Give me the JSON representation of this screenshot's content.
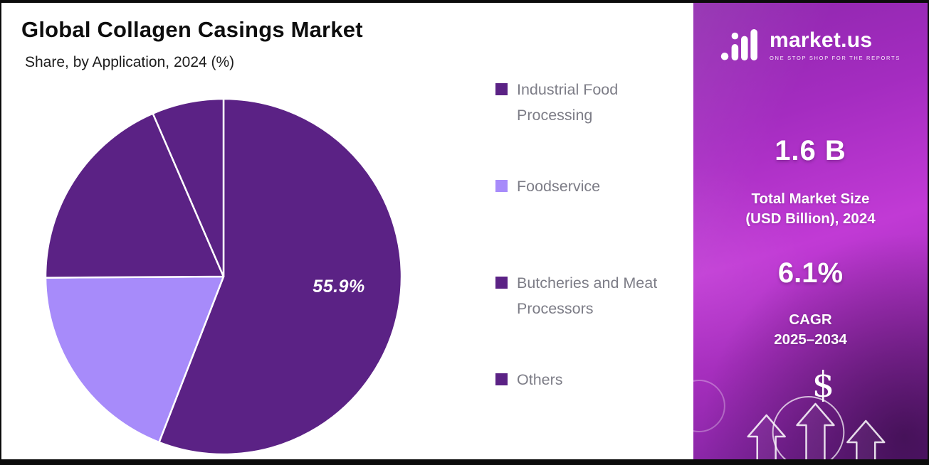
{
  "chart_data": {
    "type": "pie",
    "title": "Global Collagen Casings Market",
    "subtitle": "Share, by Application, 2024 (%)",
    "legend_position": "right",
    "slices": [
      {
        "label": "Industrial Food Processing",
        "value": 55.9,
        "color": "#5b2285"
      },
      {
        "label": "Foodservice",
        "value": 19.0,
        "color": "#a78bfa"
      },
      {
        "label": "Butcheries and Meat Processors",
        "value": 18.6,
        "color": "#5b2285"
      },
      {
        "label": "Others",
        "value": 6.5,
        "color": "#5b2285"
      }
    ],
    "data_labels": [
      {
        "slice": "Industrial Food Processing",
        "text": "55.9%"
      }
    ],
    "slice_border_color": "#ffffff"
  },
  "side_panel": {
    "logo_text": "market.us",
    "logo_tagline": "ONE STOP SHOP FOR THE REPORTS",
    "market_size_value": "1.6 B",
    "market_size_label_line1": "Total Market Size",
    "market_size_label_line2": "(USD Billion), 2024",
    "cagr_value": "6.1%",
    "cagr_label_line1": "CAGR",
    "cagr_label_line2": "2025–2034",
    "dollar_symbol": "$",
    "panel_accent_color": "#c13ad5"
  }
}
